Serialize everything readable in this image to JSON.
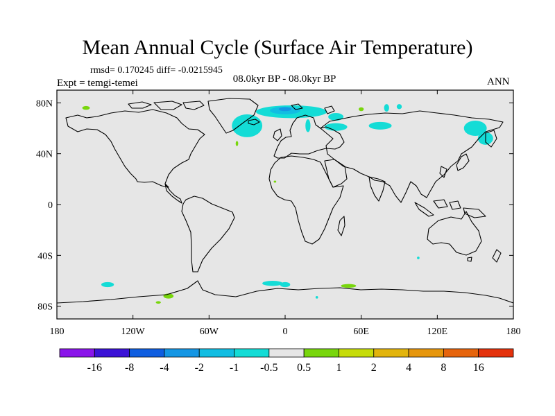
{
  "chart_data": {
    "type": "heatmap",
    "title": "Mean Annual Cycle (Surface Air Temperature)",
    "stats_text": "rmsd= 0.170245 diff= -0.0215945",
    "subtitle": "08.0kyr BP - 08.0kyr BP",
    "experiment_label": "Expt = temgi-temei",
    "season_label": "ANN",
    "xlim": [
      -180,
      180
    ],
    "ylim": [
      -90,
      90
    ],
    "x_ticks": [
      {
        "value": -180,
        "label": "180"
      },
      {
        "value": -120,
        "label": "120W"
      },
      {
        "value": -60,
        "label": "60W"
      },
      {
        "value": 0,
        "label": "0"
      },
      {
        "value": 60,
        "label": "60E"
      },
      {
        "value": 120,
        "label": "120E"
      },
      {
        "value": 180,
        "label": "180"
      }
    ],
    "y_ticks": [
      {
        "value": 80,
        "label": "80N"
      },
      {
        "value": 40,
        "label": "40N"
      },
      {
        "value": 0,
        "label": "0"
      },
      {
        "value": -40,
        "label": "40S"
      },
      {
        "value": -80,
        "label": "80S"
      }
    ],
    "background_color": "#e6e6e6",
    "colorbar": {
      "colors": [
        "#8a14ea",
        "#3b12d6",
        "#0f5ee0",
        "#1496e4",
        "#12bde2",
        "#14dcd6",
        "#e6e6e6",
        "#78d60c",
        "#c6dc0a",
        "#e2b40c",
        "#e6960c",
        "#e6640c",
        "#e4320c"
      ],
      "labels": [
        "-16",
        "-8",
        "-4",
        "-2",
        "-1",
        "-0.5",
        "0.5",
        "1",
        "2",
        "4",
        "8",
        "16"
      ]
    },
    "anomaly_regions": [
      {
        "category": "-0.5 to -1",
        "color": "#14dcd6",
        "lon": -30,
        "lat": 62,
        "rx": 12,
        "ry": 9
      },
      {
        "category": "-0.5 to -1",
        "color": "#14dcd6",
        "lon": 5,
        "lat": 73,
        "rx": 28,
        "ry": 5
      },
      {
        "category": "-1 to -2",
        "color": "#12bde2",
        "lon": 0,
        "lat": 74,
        "rx": 12,
        "ry": 3
      },
      {
        "category": "-2 to -4",
        "color": "#1496e4",
        "lon": 0,
        "lat": 75,
        "rx": 5,
        "ry": 1.5
      },
      {
        "category": "-0.5 to -1",
        "color": "#14dcd6",
        "lon": 40,
        "lat": 69,
        "rx": 6,
        "ry": 3
      },
      {
        "category": "-0.5 to -1",
        "color": "#14dcd6",
        "lon": 40,
        "lat": 61,
        "rx": 9,
        "ry": 3
      },
      {
        "category": "-0.5 to -1",
        "color": "#14dcd6",
        "lon": 75,
        "lat": 62,
        "rx": 9,
        "ry": 3
      },
      {
        "category": "-0.5 to -1",
        "color": "#14dcd6",
        "lon": 150,
        "lat": 60,
        "rx": 9,
        "ry": 6
      },
      {
        "category": "-0.5 to -1",
        "color": "#14dcd6",
        "lon": 158,
        "lat": 52,
        "rx": 6,
        "ry": 5
      },
      {
        "category": "-0.5 to -1",
        "color": "#14dcd6",
        "lon": 80,
        "lat": 76,
        "rx": 2,
        "ry": 3
      },
      {
        "category": "-0.5 to -1",
        "color": "#14dcd6",
        "lon": 90,
        "lat": 77,
        "rx": 2,
        "ry": 2
      },
      {
        "category": "-0.5 to -1",
        "color": "#14dcd6",
        "lon": 18,
        "lat": 62,
        "rx": 2,
        "ry": 5
      },
      {
        "category": "-0.5 to -1",
        "color": "#14dcd6",
        "lon": 105,
        "lat": -42,
        "rx": 1,
        "ry": 1
      },
      {
        "category": "-0.5 to -1",
        "color": "#14dcd6",
        "lon": -140,
        "lat": -63,
        "rx": 5,
        "ry": 2
      },
      {
        "category": "-0.5 to -1",
        "color": "#14dcd6",
        "lon": -10,
        "lat": -62,
        "rx": 8,
        "ry": 2
      },
      {
        "category": "-0.5 to -1",
        "color": "#14dcd6",
        "lon": 0,
        "lat": -63,
        "rx": 4,
        "ry": 2
      },
      {
        "category": "-0.5 to -1",
        "color": "#14dcd6",
        "lon": 25,
        "lat": -73,
        "rx": 1,
        "ry": 1
      },
      {
        "category": "0.5 to 1",
        "color": "#78d60c",
        "lon": -157,
        "lat": 76,
        "rx": 3,
        "ry": 1.5
      },
      {
        "category": "0.5 to 1",
        "color": "#78d60c",
        "lon": -38,
        "lat": 48,
        "rx": 1,
        "ry": 2
      },
      {
        "category": "0.5 to 1",
        "color": "#78d60c",
        "lon": 50,
        "lat": -64,
        "rx": 6,
        "ry": 1.5
      },
      {
        "category": "0.5 to 1",
        "color": "#78d60c",
        "lon": -92,
        "lat": -72,
        "rx": 4,
        "ry": 2
      },
      {
        "category": "0.5 to 1",
        "color": "#78d60c",
        "lon": -100,
        "lat": -77,
        "rx": 2,
        "ry": 1
      },
      {
        "category": "0.5 to 1",
        "color": "#78d60c",
        "lon": 60,
        "lat": 75,
        "rx": 2,
        "ry": 1.5
      },
      {
        "category": "0.5 to 1",
        "color": "#78d60c",
        "lon": -8,
        "lat": 18,
        "rx": 1,
        "ry": 0.5
      }
    ]
  }
}
